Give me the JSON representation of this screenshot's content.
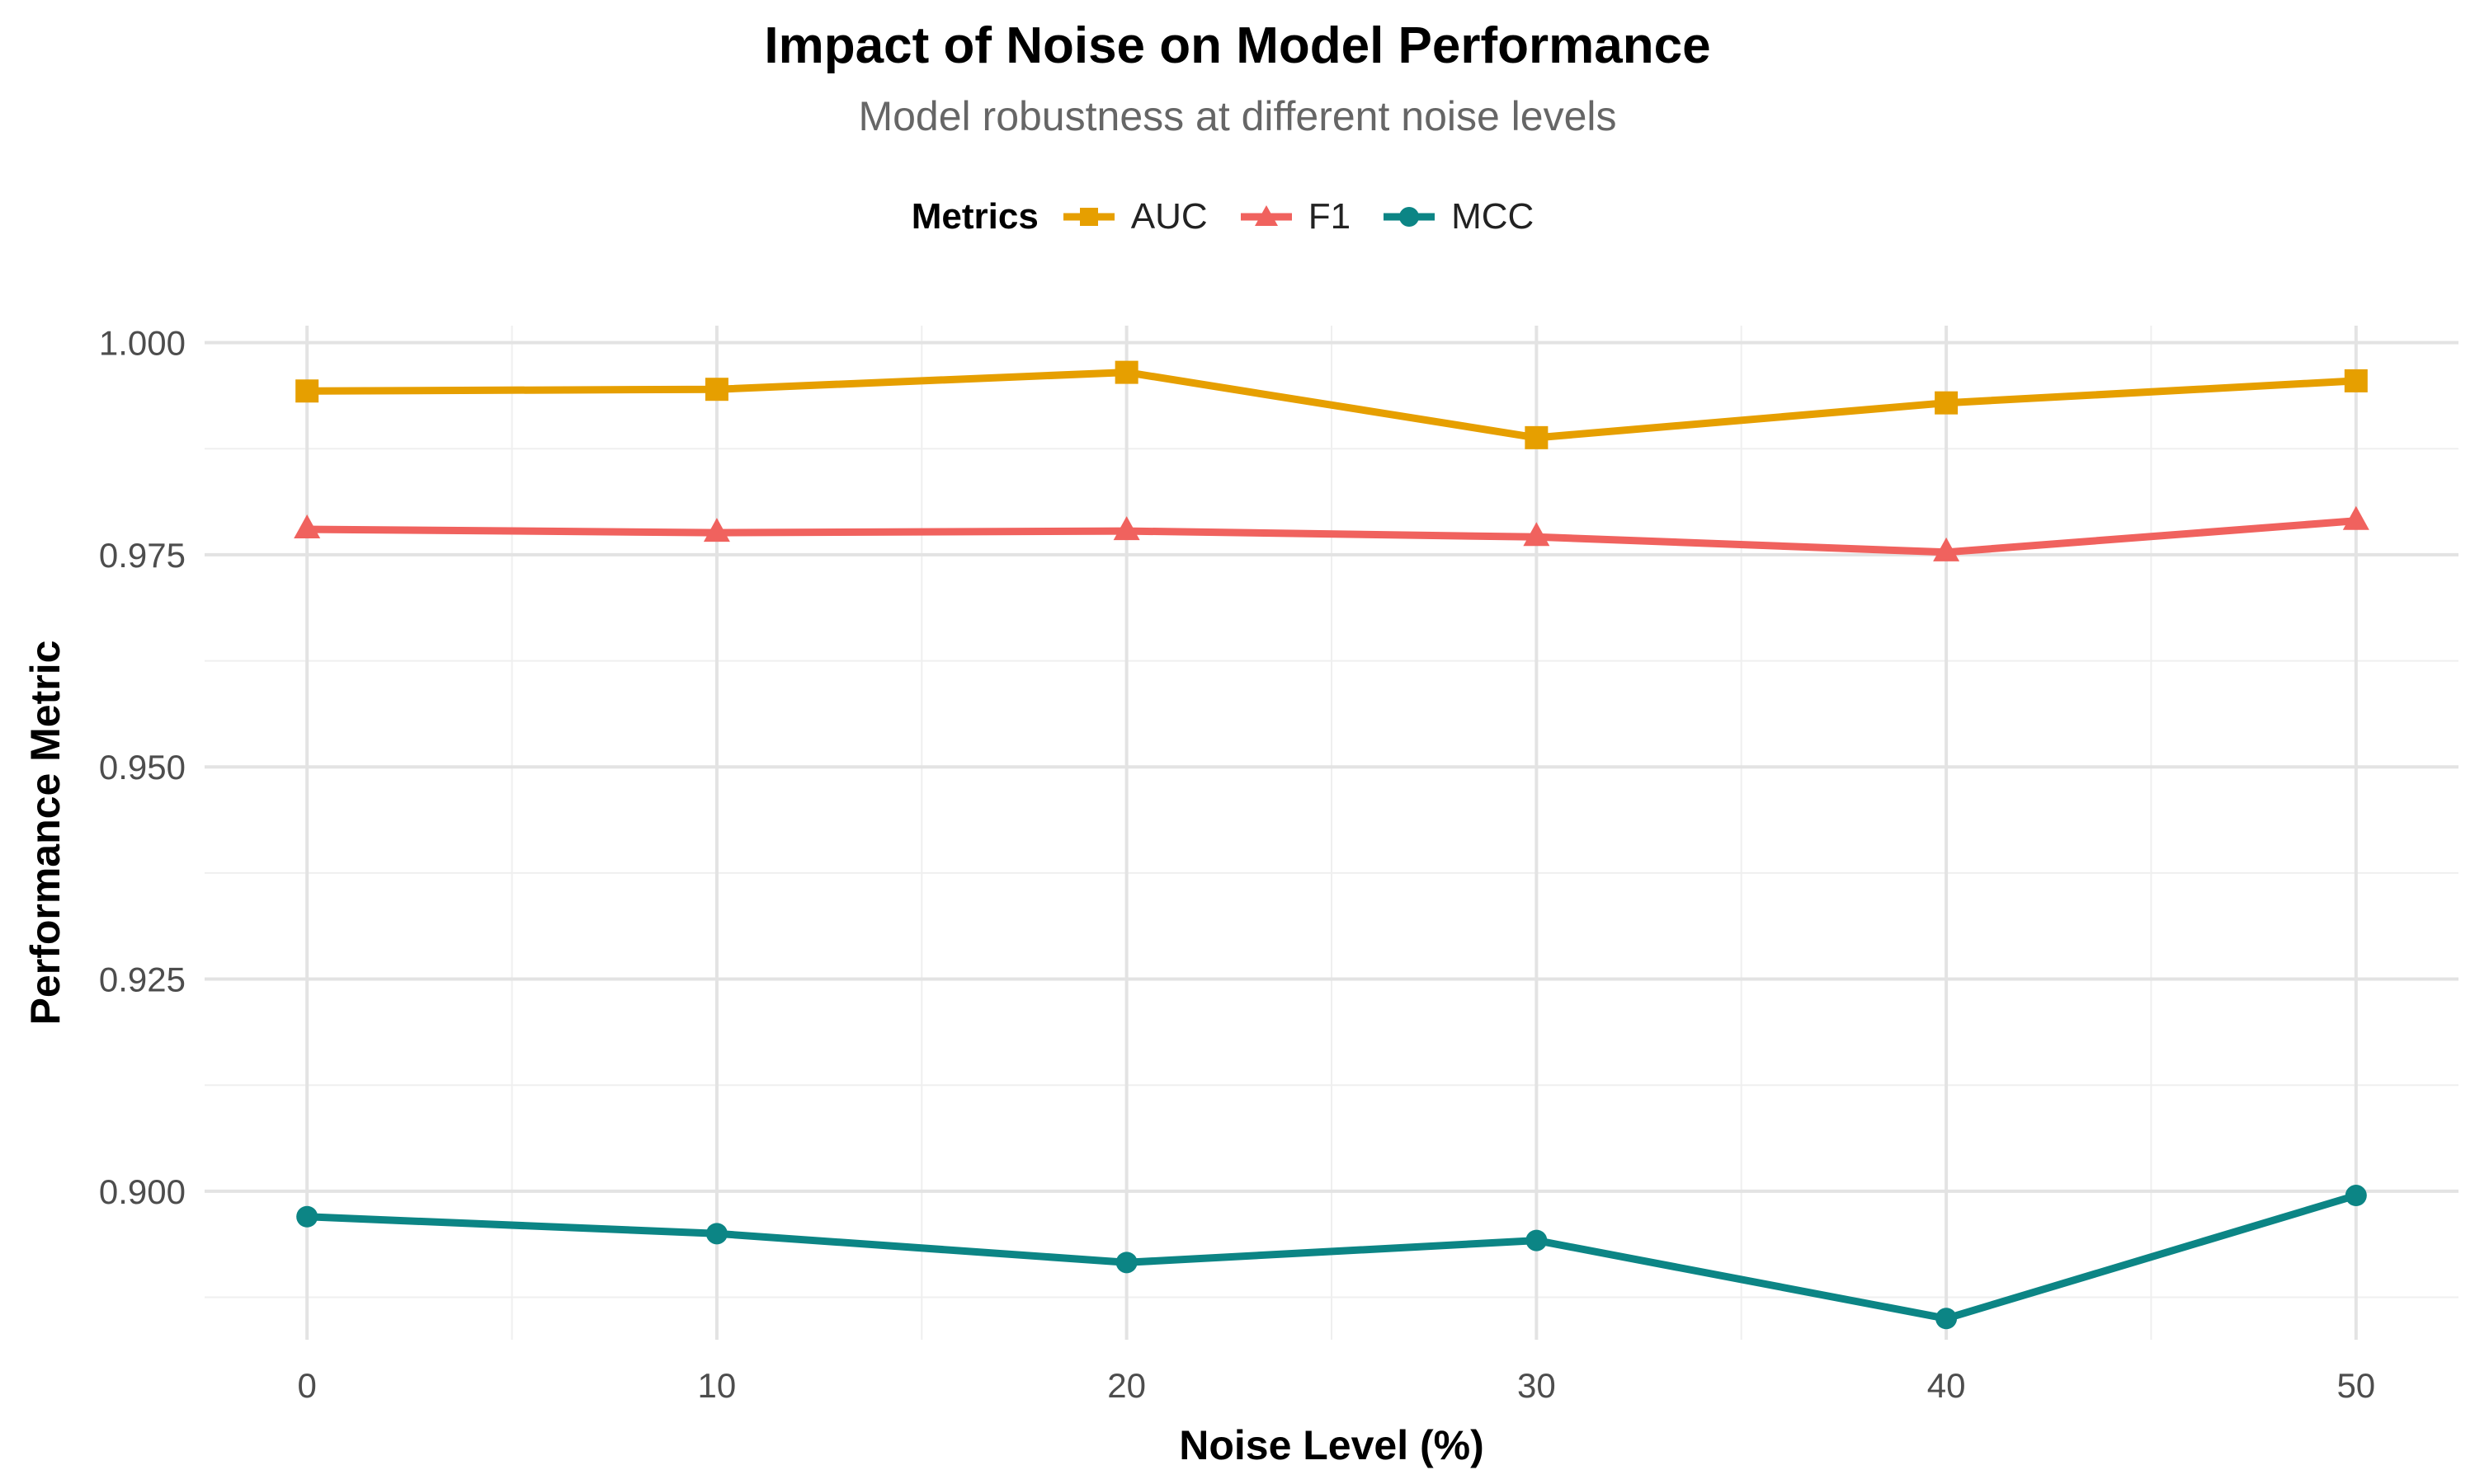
{
  "chart_data": {
    "type": "line",
    "title": "Impact of Noise on Model Performance",
    "subtitle": "Model robustness at different noise levels",
    "xlabel": "Noise Level (%)",
    "ylabel": "Performance Metric",
    "x": [
      0,
      10,
      20,
      30,
      40,
      50
    ],
    "xlim": [
      -2.5,
      52.5
    ],
    "ylim": [
      0.8825,
      1.002
    ],
    "xticks": [
      0,
      10,
      20,
      30,
      40,
      50
    ],
    "xtick_labels": [
      "0",
      "10",
      "20",
      "30",
      "40",
      "50"
    ],
    "yticks": [
      0.9,
      0.925,
      0.95,
      0.975,
      1.0
    ],
    "ytick_labels": [
      "0.900",
      "0.925",
      "0.950",
      "0.975",
      "1.000"
    ],
    "grid": true,
    "legend": {
      "title": "Metrics",
      "position": "top"
    },
    "series": [
      {
        "name": "AUC",
        "color": "#E69F00",
        "marker": "square",
        "values": [
          0.9943,
          0.9945,
          0.9965,
          0.9888,
          0.9929,
          0.9955
        ]
      },
      {
        "name": "F1",
        "color": "#F0625E",
        "marker": "triangle",
        "values": [
          0.978,
          0.9776,
          0.9778,
          0.9771,
          0.9753,
          0.979
        ]
      },
      {
        "name": "MCC",
        "color": "#0C8585",
        "marker": "circle",
        "values": [
          0.897,
          0.895,
          0.8916,
          0.8942,
          0.885,
          0.8995
        ]
      }
    ]
  }
}
